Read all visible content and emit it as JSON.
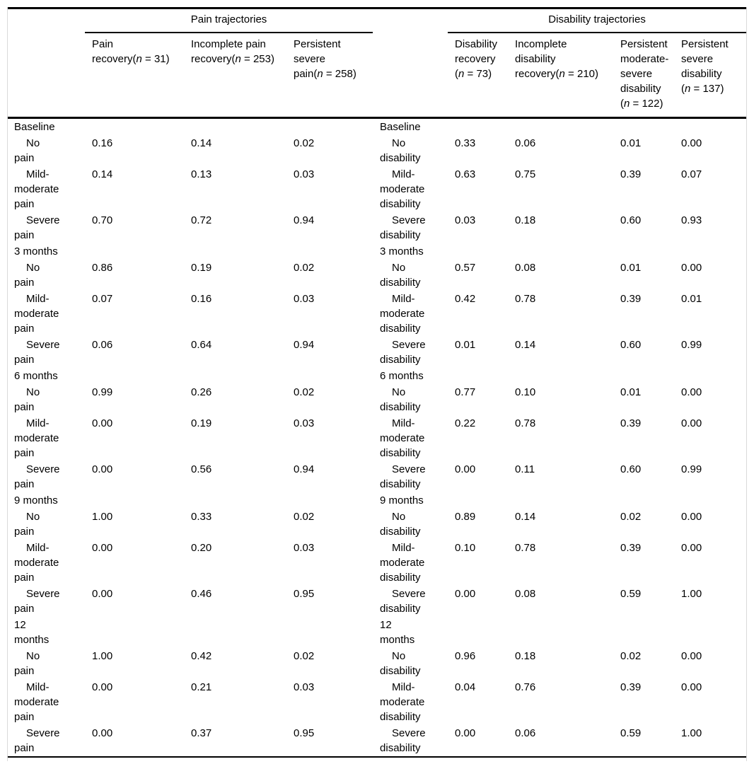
{
  "colors": {
    "background": "#ffffff",
    "text": "#000000",
    "rule": "#000000",
    "frame_border": "#d9d9d9"
  },
  "table": {
    "groups": [
      {
        "label": "Pain trajectories",
        "columns": [
          {
            "header": "Pain\nrecovery(n = 31)"
          },
          {
            "header": "Incomplete pain\nrecovery(n = 253)"
          },
          {
            "header": "Persistent\nsevere\npain(n = 258)"
          }
        ]
      },
      {
        "label": "Disability trajectories",
        "columns": [
          {
            "header": "Disability\nrecovery\n(n = 73)"
          },
          {
            "header": "Incomplete\ndisability\nrecovery(n = 210)"
          },
          {
            "header": "Persistent\nmoderate-\nsevere\ndisability\n(n = 122)"
          },
          {
            "header": "Persistent\nsevere\ndisability\n(n = 137)"
          }
        ]
      }
    ],
    "sections": [
      {
        "time_label": "Baseline",
        "rows": [
          {
            "pain_label": "No\npain",
            "disability_label": "No\ndisability",
            "pain_values": [
              "0.16",
              "0.14",
              "0.02"
            ],
            "disability_values": [
              "0.33",
              "0.06",
              "0.01",
              "0.00"
            ]
          },
          {
            "pain_label": "Mild-\nmoderate\npain",
            "disability_label": "Mild-\nmoderate\ndisability",
            "pain_values": [
              "0.14",
              "0.13",
              "0.03"
            ],
            "disability_values": [
              "0.63",
              "0.75",
              "0.39",
              "0.07"
            ]
          },
          {
            "pain_label": "Severe\npain",
            "disability_label": "Severe\ndisability",
            "pain_values": [
              "0.70",
              "0.72",
              "0.94"
            ],
            "disability_values": [
              "0.03",
              "0.18",
              "0.60",
              "0.93"
            ]
          }
        ]
      },
      {
        "time_label": "3 months",
        "rows": [
          {
            "pain_label": "No\npain",
            "disability_label": "No\ndisability",
            "pain_values": [
              "0.86",
              "0.19",
              "0.02"
            ],
            "disability_values": [
              "0.57",
              "0.08",
              "0.01",
              "0.00"
            ]
          },
          {
            "pain_label": "Mild-\nmoderate\npain",
            "disability_label": "Mild-\nmoderate\ndisability",
            "pain_values": [
              "0.07",
              "0.16",
              "0.03"
            ],
            "disability_values": [
              "0.42",
              "0.78",
              "0.39",
              "0.01"
            ]
          },
          {
            "pain_label": "Severe\npain",
            "disability_label": "Severe\ndisability",
            "pain_values": [
              "0.06",
              "0.64",
              "0.94"
            ],
            "disability_values": [
              "0.01",
              "0.14",
              "0.60",
              "0.99"
            ]
          }
        ]
      },
      {
        "time_label": "6 months",
        "rows": [
          {
            "pain_label": "No\npain",
            "disability_label": "No\ndisability",
            "pain_values": [
              "0.99",
              "0.26",
              "0.02"
            ],
            "disability_values": [
              "0.77",
              "0.10",
              "0.01",
              "0.00"
            ]
          },
          {
            "pain_label": "Mild-\nmoderate\npain",
            "disability_label": "Mild-\nmoderate\ndisability",
            "pain_values": [
              "0.00",
              "0.19",
              "0.03"
            ],
            "disability_values": [
              "0.22",
              "0.78",
              "0.39",
              "0.00"
            ]
          },
          {
            "pain_label": "Severe\npain",
            "disability_label": "Severe\ndisability",
            "pain_values": [
              "0.00",
              "0.56",
              "0.94"
            ],
            "disability_values": [
              "0.00",
              "0.11",
              "0.60",
              "0.99"
            ]
          }
        ]
      },
      {
        "time_label": "9 months",
        "rows": [
          {
            "pain_label": "No\npain",
            "disability_label": "No\ndisability",
            "pain_values": [
              "1.00",
              "0.33",
              "0.02"
            ],
            "disability_values": [
              "0.89",
              "0.14",
              "0.02",
              "0.00"
            ]
          },
          {
            "pain_label": "Mild-\nmoderate\npain",
            "disability_label": "Mild-\nmoderate\ndisability",
            "pain_values": [
              "0.00",
              "0.20",
              "0.03"
            ],
            "disability_values": [
              "0.10",
              "0.78",
              "0.39",
              "0.00"
            ]
          },
          {
            "pain_label": "Severe\npain",
            "disability_label": "Severe\ndisability",
            "pain_values": [
              "0.00",
              "0.46",
              "0.95"
            ],
            "disability_values": [
              "0.00",
              "0.08",
              "0.59",
              "1.00"
            ]
          }
        ]
      },
      {
        "time_label": "12\nmonths",
        "rows": [
          {
            "pain_label": "No\npain",
            "disability_label": "No\ndisability",
            "pain_values": [
              "1.00",
              "0.42",
              "0.02"
            ],
            "disability_values": [
              "0.96",
              "0.18",
              "0.02",
              "0.00"
            ]
          },
          {
            "pain_label": "Mild-\nmoderate\npain",
            "disability_label": "Mild-\nmoderate\ndisability",
            "pain_values": [
              "0.00",
              "0.21",
              "0.03"
            ],
            "disability_values": [
              "0.04",
              "0.76",
              "0.39",
              "0.00"
            ]
          },
          {
            "pain_label": "Severe\npain",
            "disability_label": "Severe\ndisability",
            "pain_values": [
              "0.00",
              "0.37",
              "0.95"
            ],
            "disability_values": [
              "0.00",
              "0.06",
              "0.59",
              "1.00"
            ]
          }
        ]
      }
    ]
  }
}
